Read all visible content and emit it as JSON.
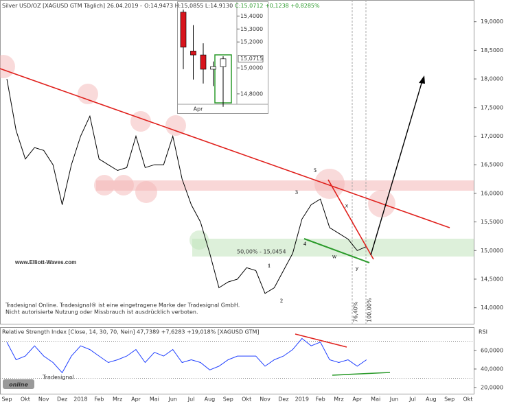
{
  "chart_data": [
    {
      "type": "line",
      "title": "Silver USD/OZ [XAGUSD GTM Täglich] 26.04.2019 -",
      "ohlc": "O:14,9473 H:15,0855 L:14,9130",
      "change": "C:15,0712 +0,1238 +0,8285%",
      "categories": [
        "Sep",
        null,
        "Okt",
        null,
        "Nov",
        null,
        "Dez",
        null,
        "2018",
        null,
        "Feb",
        null,
        "Mrz",
        null,
        "Apr",
        null,
        "Mai",
        null,
        "Jun",
        null,
        "Jul",
        null,
        "Aug",
        null,
        "Sep",
        null,
        "Okt",
        null,
        "Nov",
        null,
        "Dez",
        null,
        "2019",
        null,
        "Feb",
        null,
        "Mrz",
        null,
        "Apr",
        null,
        "Mai",
        null,
        "Jun",
        null,
        "Jul",
        null,
        "Aug",
        null,
        "Sep",
        null,
        "Okt",
        null
      ],
      "values": [
        18.0,
        17.1,
        16.6,
        16.8,
        16.75,
        16.5,
        15.8,
        16.5,
        17.0,
        17.35,
        16.6,
        16.5,
        16.4,
        16.45,
        17.0,
        16.45,
        16.5,
        16.5,
        17.0,
        16.25,
        15.8,
        15.5,
        14.95,
        14.35,
        14.45,
        14.5,
        14.7,
        14.65,
        14.25,
        14.35,
        14.65,
        14.95,
        15.55,
        15.8,
        15.9,
        15.4,
        15.3,
        15.2,
        15.0,
        15.07,
        null,
        null,
        null,
        null,
        null,
        null,
        null,
        null,
        null,
        null,
        null,
        null
      ],
      "color": "#000000",
      "ylim": [
        13.72,
        19.38
      ],
      "yticks": [
        {
          "value": 14,
          "label": "14,0000"
        },
        {
          "value": 14.5,
          "label": "14,5000"
        },
        {
          "value": 15,
          "label": "15,0000"
        },
        {
          "value": 15.5,
          "label": "15,5000"
        },
        {
          "value": 16,
          "label": "16,0000"
        },
        {
          "value": 16.5,
          "label": "16,5000"
        },
        {
          "value": 17,
          "label": "17,0000"
        },
        {
          "value": 17.5,
          "label": "17,5000"
        },
        {
          "value": 18,
          "label": "18,0000"
        },
        {
          "value": 18.5,
          "label": "18,5000"
        },
        {
          "value": 19,
          "label": "19,0000"
        }
      ],
      "annotations": [
        "5",
        "3",
        "4",
        "1",
        "2",
        "x",
        "w",
        "y"
      ],
      "fib_levels": [
        "50,00% - 15,0454",
        "76,40%",
        "100,00%"
      ],
      "website": "www.Elliott-Waves.com",
      "disclaimer": [
        "Tradesignal Online. Tradesignal® ist eine eingetragene Marke der Tradesignal GmbH.",
        "Nicht autorisierte Nutzung oder Missbrauch ist ausdrücklich verboten."
      ],
      "watermark": "online",
      "watermark_brand": "Tradesignal"
    },
    {
      "type": "line",
      "title": "Relative Strength Index [Close, 14, 30, 70, Nein] 47,7389 +7,6283 +19,018% [XAGUSD GTM]",
      "axis_label": "RSI",
      "values": [
        69,
        50,
        54,
        65,
        54,
        47,
        36,
        54,
        65,
        61,
        54,
        47,
        50,
        54,
        61,
        47,
        58,
        54,
        61,
        47,
        50,
        47,
        39,
        43,
        50,
        54,
        54,
        54,
        43,
        50,
        54,
        61,
        73,
        65,
        69,
        50,
        47,
        50,
        43,
        50,
        null,
        null,
        null,
        null,
        null,
        null,
        null,
        null,
        null,
        null,
        null,
        null
      ],
      "color": "#1f3fff",
      "levels": [
        70,
        30
      ],
      "ylim": [
        12.6,
        84.4
      ],
      "yticks": [
        {
          "value": 20,
          "label": "20,0000"
        },
        {
          "value": 40,
          "label": "40,0000"
        },
        {
          "value": 60,
          "label": "60,0000"
        }
      ]
    },
    {
      "type": "candlestick",
      "categories": [
        null,
        "Apr",
        null,
        null,
        null
      ],
      "open": [
        15.43,
        15.13,
        15.1,
        14.99,
        15.01
      ],
      "high": [
        15.45,
        15.33,
        15.19,
        15.05,
        15.09
      ],
      "low": [
        14.99,
        14.91,
        14.88,
        14.86,
        14.7
      ],
      "close": [
        15.16,
        15.1,
        14.99,
        15.01,
        15.07
      ],
      "last": {
        "value": 15.0715,
        "label": "15,0715"
      },
      "ylim": [
        14.72,
        15.497
      ],
      "yticks": [
        {
          "value": 14.8,
          "label": "14,8000"
        },
        {
          "value": 15.0,
          "label": "15,0000"
        },
        {
          "value": 15.2,
          "label": "15,2000"
        },
        {
          "value": 15.3,
          "label": "15,3000"
        },
        {
          "value": 15.4,
          "label": "15,4000"
        }
      ]
    }
  ]
}
